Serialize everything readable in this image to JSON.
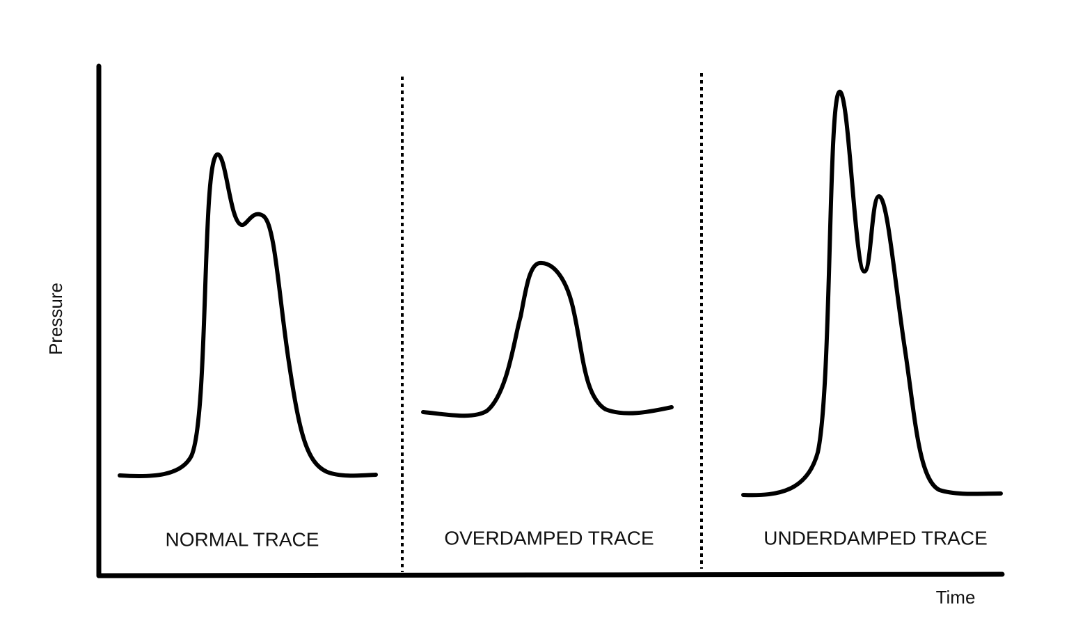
{
  "axes": {
    "y_label": "Pressure",
    "x_label": "Time"
  },
  "panels": [
    {
      "label": "NORMAL TRACE"
    },
    {
      "label": "OVERDAMPED TRACE"
    },
    {
      "label": "UNDERDAMPED TRACE"
    }
  ]
}
